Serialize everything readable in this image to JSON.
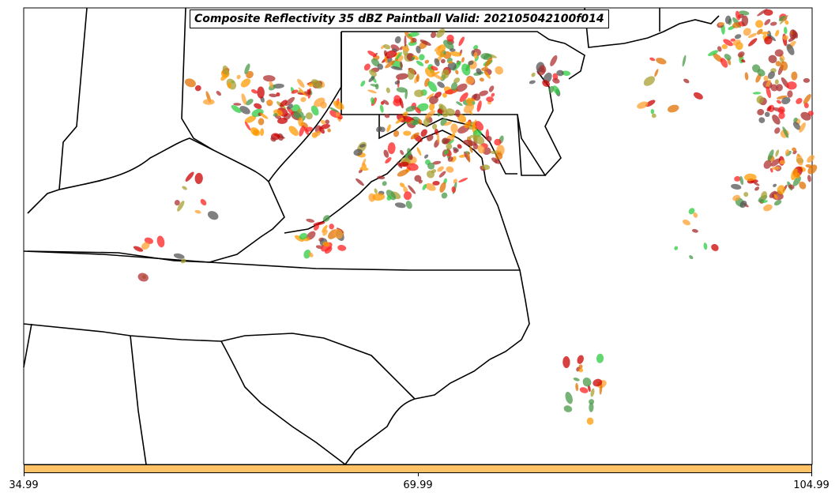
{
  "title": "Composite Reflectivity 35 dBZ Paintball Valid: 202105042100f014",
  "colorbar": {
    "color": "#ffc266",
    "ticks": [
      "34.99",
      "69.99",
      "104.99"
    ]
  },
  "paintball_colors": [
    "#ff2020",
    "#e07000",
    "#cc0000",
    "#ff9900",
    "#2ecc40",
    "#a52a2a",
    "#555555",
    "#a8a030",
    "#ffa030",
    "#4a9a4a",
    "#b03030"
  ]
}
